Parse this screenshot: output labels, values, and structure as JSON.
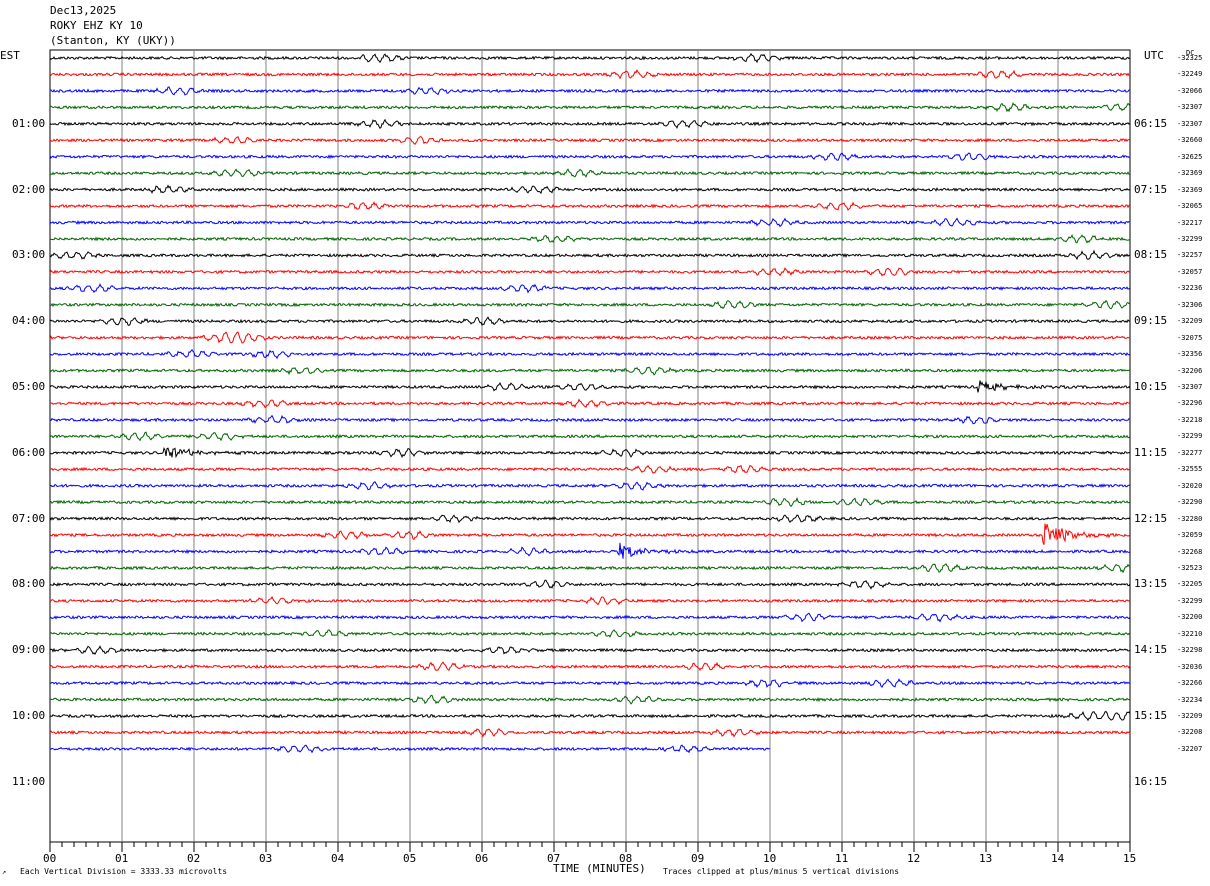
{
  "header": {
    "date": "Dec13,2025",
    "station": "ROKY EHZ KY 10",
    "location": "(Stanton, KY (UKY))"
  },
  "left_tz": "EST",
  "right_tz": "UTC",
  "dc_label": "DC",
  "footer": {
    "scale_note": "Each Vertical Division = 3333.33 microvolts",
    "xlabel": "TIME (MINUTES)",
    "clip_note": "Traces clipped at plus/minus 5 vertical divisions"
  },
  "chart_data": {
    "type": "line",
    "xlabel": "TIME (MINUTES)",
    "xlim": [
      0,
      15
    ],
    "x_ticks": [
      "00",
      "01",
      "02",
      "03",
      "04",
      "05",
      "06",
      "07",
      "08",
      "09",
      "10",
      "11",
      "12",
      "13",
      "14",
      "15"
    ],
    "trace_colors": [
      "#000000",
      "#ff0000",
      "#0000ff",
      "#006400"
    ],
    "trace_minutes_per_line": 15,
    "last_trace_end_minute": 10,
    "hour_labels_left": [
      "01:00",
      "02:00",
      "03:00",
      "04:00",
      "05:00",
      "06:00",
      "07:00",
      "08:00",
      "09:00",
      "10:00",
      "11:00"
    ],
    "hour_labels_right": [
      "06:15",
      "07:15",
      "08:15",
      "09:15",
      "10:15",
      "11:15",
      "12:15",
      "13:15",
      "14:15",
      "15:15",
      "16:15"
    ],
    "dc_offsets": [
      "-32325",
      "-32249",
      "-32066",
      "-32307",
      "-32307",
      "-32660",
      "-32625",
      "-32369",
      "-32369",
      "-32065",
      "-32217",
      "-32299",
      "-32257",
      "-32057",
      "-32236",
      "-32306",
      "-32209",
      "-32075",
      "-32356",
      "-32206",
      "-32307",
      "-32296",
      "-32218",
      "-32299",
      "-32277",
      "-32555",
      "-32020",
      "-32290",
      "-32280",
      "-32059",
      "-32268",
      "-32523",
      "-32205",
      "-32299",
      "-32200",
      "-32210",
      "-32298",
      "-32036",
      "-32266",
      "-32234",
      "-32209",
      "-32208",
      "-32207"
    ],
    "events": [
      {
        "trace": 24,
        "minute": 1.6,
        "amplitude": "moderate"
      },
      {
        "trace": 29,
        "minute": 13.8,
        "amplitude": "large"
      },
      {
        "trace": 30,
        "minute": 7.9,
        "amplitude": "moderate"
      },
      {
        "trace": 20,
        "minute": 12.9,
        "amplitude": "small"
      }
    ]
  }
}
